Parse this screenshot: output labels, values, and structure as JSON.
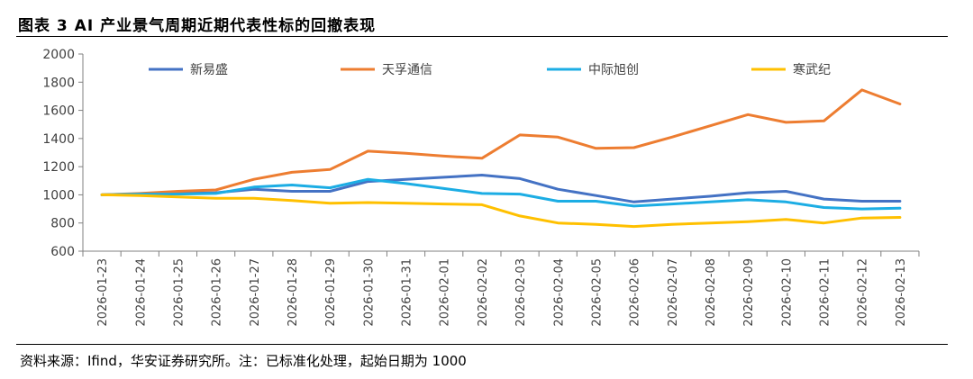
{
  "figure": {
    "title": "图表 3  AI 产业景气周期近期代表性标的回撤表现",
    "source": "资料来源：Ifind，华安证券研究所。注：已标准化处理，起始日期为 1000"
  },
  "chart_data": {
    "type": "line",
    "title": "图表 3  AI 产业景气周期近期代表性标的回撤表现",
    "xlabel": "",
    "ylabel": "",
    "ylim": [
      600,
      2000
    ],
    "yticks": [
      600,
      800,
      1000,
      1200,
      1400,
      1600,
      1800,
      2000
    ],
    "grid": false,
    "legend": "top",
    "categories": [
      "2026-01-23",
      "2026-01-24",
      "2026-01-25",
      "2026-01-26",
      "2026-01-27",
      "2026-01-28",
      "2026-01-29",
      "2026-01-30",
      "2026-01-31",
      "2026-02-01",
      "2026-02-02",
      "2026-02-03",
      "2026-02-04",
      "2026-02-05",
      "2026-02-06",
      "2026-02-07",
      "2026-02-08",
      "2026-02-09",
      "2026-02-10",
      "2026-02-11",
      "2026-02-12",
      "2026-02-13"
    ],
    "series": [
      {
        "name": "新易盛",
        "color": "#4472C4",
        "values": [
          1000,
          1005,
          1010,
          1015,
          1040,
          1025,
          1025,
          1095,
          1110,
          1125,
          1140,
          1115,
          1040,
          995,
          950,
          970,
          990,
          1015,
          1025,
          970,
          955,
          955
        ]
      },
      {
        "name": "天孚通信",
        "color": "#ED7D31",
        "values": [
          1000,
          1010,
          1025,
          1035,
          1110,
          1160,
          1180,
          1310,
          1295,
          1275,
          1260,
          1425,
          1410,
          1330,
          1335,
          1410,
          1490,
          1570,
          1515,
          1525,
          1745,
          1645
        ]
      },
      {
        "name": "中际旭创",
        "color": "#1CADE4",
        "values": [
          1000,
          1005,
          1005,
          1010,
          1055,
          1070,
          1050,
          1110,
          1080,
          1045,
          1010,
          1005,
          955,
          955,
          920,
          935,
          950,
          965,
          950,
          910,
          900,
          905
        ]
      },
      {
        "name": "寒武纪",
        "color": "#FFC000",
        "values": [
          1000,
          995,
          985,
          975,
          975,
          960,
          940,
          945,
          940,
          935,
          930,
          850,
          800,
          790,
          775,
          790,
          800,
          810,
          825,
          800,
          835,
          840
        ]
      }
    ]
  }
}
